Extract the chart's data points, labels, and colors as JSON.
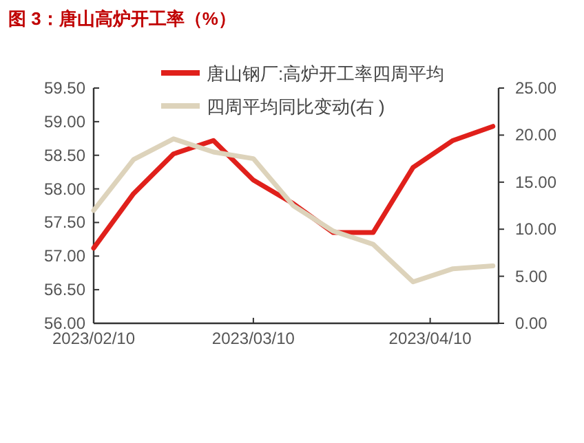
{
  "chart_data": {
    "type": "line",
    "title": "图 3：唐山高炉开工率（%）",
    "x": [
      "2023-02-10",
      "2023-02-17",
      "2023-02-24",
      "2023-03-03",
      "2023-03-10",
      "2023-03-17",
      "2023-03-24",
      "2023-03-31",
      "2023-04-07",
      "2023-04-14",
      "2023-04-21"
    ],
    "series": [
      {
        "name": "唐山钢厂:高炉开工率四周平均",
        "color": "#e0201b",
        "values": [
          57.12,
          57.93,
          58.52,
          58.72,
          58.13,
          57.78,
          57.35,
          57.35,
          58.32,
          58.72,
          58.93
        ]
      },
      {
        "name": "四周平均同比变动(右 )",
        "color": "#ddd3bb",
        "axis": "y2",
        "values": [
          12.0,
          17.4,
          19.6,
          18.2,
          17.5,
          12.5,
          9.8,
          8.4,
          4.4,
          5.8,
          6.1
        ]
      }
    ],
    "xlim": [
      "2023-02-10",
      "2023-04-22"
    ],
    "xticks": [
      {
        "value": "2023-02-10",
        "label": "2023/02/10"
      },
      {
        "value": "2023-03-10",
        "label": "2023/03/10"
      },
      {
        "value": "2023-04-10",
        "label": "2023/04/10"
      }
    ],
    "ylim": [
      56,
      59.5
    ],
    "yticks": [
      {
        "value": 56,
        "label": "56.00"
      },
      {
        "value": 56.5,
        "label": "56.50"
      },
      {
        "value": 57,
        "label": "57.00"
      },
      {
        "value": 57.5,
        "label": "57.50"
      },
      {
        "value": 58,
        "label": "58.00"
      },
      {
        "value": 58.5,
        "label": "58.50"
      },
      {
        "value": 59,
        "label": "59.00"
      },
      {
        "value": 59.5,
        "label": "59.50"
      }
    ],
    "y2lim": [
      0,
      25
    ],
    "y2ticks": [
      {
        "value": 0,
        "label": "0.00"
      },
      {
        "value": 5,
        "label": "5.00"
      },
      {
        "value": 10,
        "label": "10.00"
      },
      {
        "value": 15,
        "label": "15.00"
      },
      {
        "value": 20,
        "label": "20.00"
      },
      {
        "value": 25,
        "label": "25.00"
      }
    ],
    "legend": "top",
    "grid": false,
    "marker": "none",
    "line_style": "solid"
  }
}
